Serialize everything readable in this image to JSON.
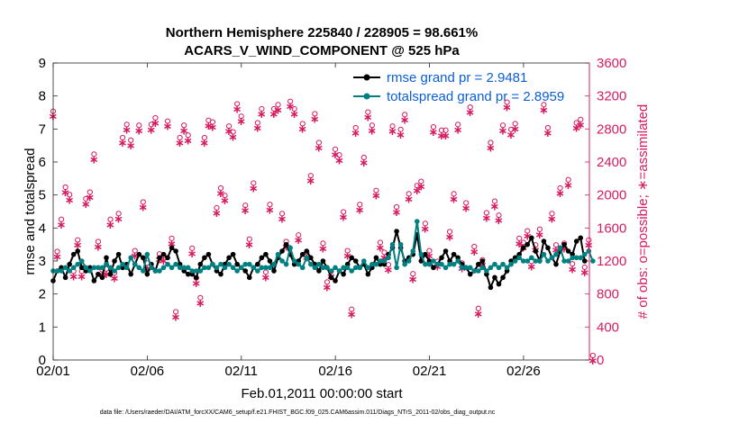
{
  "chart_data": {
    "type": "line",
    "title": "Northern Hemisphere 225840 / 228905 = 98.661%",
    "subtitle": "ACARS_V_WIND_COMPONENT @ 525 hPa",
    "xlabel": "Feb.01,2011 00:00:00 start",
    "ylabel_left": "rmse and totalspread",
    "ylabel_right": "# of obs: o=possible; ∗=assimilated",
    "footer": "data file: /Users/raeder/DAI/ATM_forcXX/CAM6_setup/f.e21.FHIST_BGC.f09_025.CAM6assim.011/Diags_NTrS_2011-02/obs_diag_output.nc",
    "x_ticks": [
      "02/01",
      "02/06",
      "02/11",
      "02/16",
      "02/21",
      "02/26"
    ],
    "x_tick_days": [
      0,
      5,
      10,
      15,
      20,
      25
    ],
    "xlim": [
      0,
      28.5
    ],
    "ylim_left": [
      0,
      9
    ],
    "y_ticks_left": [
      "0",
      "1",
      "2",
      "3",
      "4",
      "5",
      "6",
      "7",
      "8",
      "9"
    ],
    "ylim_right": [
      0,
      3600
    ],
    "y_ticks_right": [
      "0",
      "400",
      "800",
      "1200",
      "1600",
      "2000",
      "2400",
      "2800",
      "3200",
      "3600"
    ],
    "colors": {
      "rmse": "#000000",
      "spread": "#008080",
      "obs": "#d81b60"
    },
    "legend": [
      {
        "label": "rmse grand pr = 2.9481",
        "color": "#000000"
      },
      {
        "label": "totalspread grand pr = 2.8959",
        "color": "#008080"
      }
    ],
    "series": [
      {
        "name": "rmse",
        "values": [
          2.4,
          2.7,
          2.8,
          2.5,
          2.9,
          3.2,
          3.3,
          2.8,
          2.7,
          2.8,
          2.4,
          2.6,
          2.5,
          3.1,
          2.6,
          3.0,
          3.2,
          2.8,
          2.9,
          2.6,
          2.9,
          3.2,
          3.1,
          2.6,
          2.9,
          2.7,
          3.1,
          3.2,
          3.1,
          3.4,
          3.3,
          2.9,
          2.7,
          2.6,
          2.6,
          2.5,
          2.9,
          3.1,
          3.2,
          2.9,
          2.7,
          2.6,
          2.9,
          3.1,
          3.2,
          2.9,
          2.8,
          2.7,
          2.5,
          2.8,
          2.9,
          3.1,
          3.2,
          3.0,
          2.7,
          3.1,
          3.3,
          3.5,
          3.2,
          2.9,
          3.0,
          3.2,
          3.3,
          3.1,
          2.9,
          2.7,
          3.0,
          2.8,
          2.5,
          2.4,
          2.7,
          2.6,
          2.9,
          3.1,
          3.0,
          2.8,
          2.9,
          2.6,
          2.8,
          3.1,
          2.9,
          2.9,
          3.2,
          3.4,
          3.9,
          3.4,
          3.0,
          3.1,
          3.2,
          3.8,
          3.0,
          3.2,
          3.0,
          2.8,
          2.9,
          3.1,
          3.3,
          3.0,
          3.2,
          3.1,
          2.9,
          2.8,
          2.6,
          2.7,
          2.9,
          3.0,
          2.6,
          2.2,
          2.5,
          2.3,
          2.5,
          2.7,
          3.0,
          3.1,
          3.2,
          3.4,
          3.5,
          3.7,
          3.3,
          3.0,
          3.6,
          3.4,
          3.1,
          2.9,
          3.3,
          3.5,
          3.3,
          3.2,
          3.6,
          3.7,
          3.0
        ]
      },
      {
        "name": "totalspread",
        "values": [
          2.7,
          2.7,
          2.7,
          2.8,
          2.7,
          2.8,
          2.9,
          3.0,
          2.8,
          2.7,
          2.8,
          2.8,
          2.8,
          2.9,
          2.8,
          2.7,
          2.8,
          2.9,
          2.8,
          3.1,
          2.9,
          2.8,
          2.7,
          3.2,
          2.8,
          2.7,
          2.7,
          2.8,
          2.9,
          2.8,
          2.9,
          2.8,
          2.8,
          2.8,
          2.7,
          2.7,
          2.7,
          2.8,
          2.8,
          2.9,
          2.8,
          2.9,
          2.8,
          2.9,
          2.8,
          2.7,
          2.8,
          2.9,
          2.9,
          2.8,
          2.7,
          2.8,
          2.8,
          2.8,
          2.9,
          3.2,
          3.0,
          2.9,
          3.4,
          3.0,
          2.9,
          2.8,
          3.1,
          2.9,
          2.8,
          2.9,
          2.8,
          2.8,
          2.7,
          2.8,
          2.7,
          2.8,
          2.8,
          2.7,
          2.8,
          2.8,
          3.0,
          2.8,
          2.9,
          2.9,
          3.0,
          3.0,
          3.1,
          3.5,
          2.8,
          3.5,
          2.9,
          3.0,
          3.3,
          4.2,
          3.2,
          2.9,
          2.9,
          3.0,
          2.9,
          2.9,
          2.8,
          2.9,
          2.9,
          3.0,
          2.8,
          2.8,
          2.8,
          2.7,
          2.7,
          2.8,
          2.7,
          2.8,
          2.9,
          2.8,
          2.9,
          2.8,
          2.9,
          3.0,
          3.1,
          3.0,
          3.0,
          3.1,
          3.0,
          3.0,
          3.2,
          3.0,
          3.1,
          3.2,
          3.4,
          3.0,
          3.0,
          3.1,
          3.1,
          3.1,
          3.2,
          3.3,
          3.0
        ]
      },
      {
        "name": "obs",
        "values": [
          2960,
          1260,
          1650,
          2040,
          1950,
          1020,
          1400,
          1020,
          1900,
          1980,
          2440,
          1380,
          1040,
          1050,
          1650,
          1000,
          1720,
          2640,
          2800,
          2610,
          1270,
          2790,
          1860,
          1120,
          2800,
          2880,
          1230,
          1210,
          2840,
          1420,
          530,
          2640,
          2790,
          2670,
          1300,
          940,
          700,
          2640,
          2850,
          2830,
          1790,
          2030,
          1940,
          2780,
          2710,
          3050,
          2900,
          1820,
          1410,
          2090,
          2820,
          2990,
          1010,
          1830,
          2990,
          3040,
          1720,
          1380,
          3080,
          2990,
          1460,
          2810,
          1250,
          2180,
          2930,
          2580,
          1360,
          890,
          1020,
          2500,
          2430,
          1740,
          1270,
          560,
          2760,
          1830,
          2400,
          2950,
          2790,
          2000,
          1370,
          1250,
          1100,
          2780,
          1800,
          2740,
          2920,
          1960,
          990,
          2060,
          2110,
          1600,
          1270,
          2770,
          1140,
          2730,
          2730,
          1500,
          1960,
          2800,
          1120,
          1850,
          3010,
          1320,
          570,
          1160,
          1730,
          2580,
          1870,
          1700,
          2790,
          3070,
          2740,
          2810,
          1420,
          1370,
          1510,
          1140,
          1340,
          1530,
          3040,
          2760,
          1720,
          1340,
          2030,
          1360,
          2130,
          1110,
          2820,
          2860,
          1070,
          1400,
          0
        ]
      }
    ]
  }
}
